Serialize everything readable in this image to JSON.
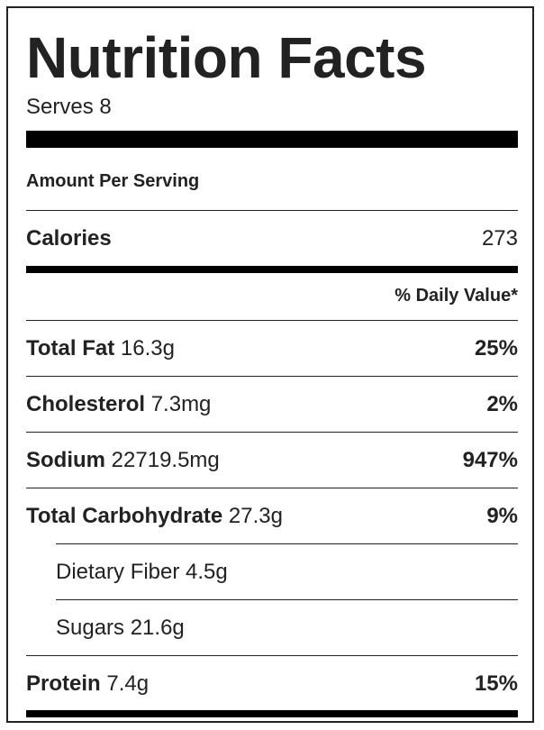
{
  "label": {
    "title": "Nutrition Facts",
    "serves": "Serves 8",
    "amount_per_serving": "Amount Per Serving",
    "calories": {
      "name": "Calories",
      "value": "273"
    },
    "daily_value_header": "% Daily Value*",
    "nutrients": [
      {
        "name": "Total Fat",
        "amount": "16.3g",
        "dv": "25%"
      },
      {
        "name": "Cholesterol",
        "amount": "7.3mg",
        "dv": "2%"
      },
      {
        "name": "Sodium",
        "amount": "22719.5mg",
        "dv": "947%"
      },
      {
        "name": "Total Carbohydrate",
        "amount": "27.3g",
        "dv": "9%"
      }
    ],
    "sub_nutrients": [
      {
        "text": "Dietary Fiber 4.5g"
      },
      {
        "text": "Sugars 21.6g"
      }
    ],
    "protein": {
      "name": "Protein",
      "amount": "7.4g",
      "dv": "15%"
    }
  }
}
